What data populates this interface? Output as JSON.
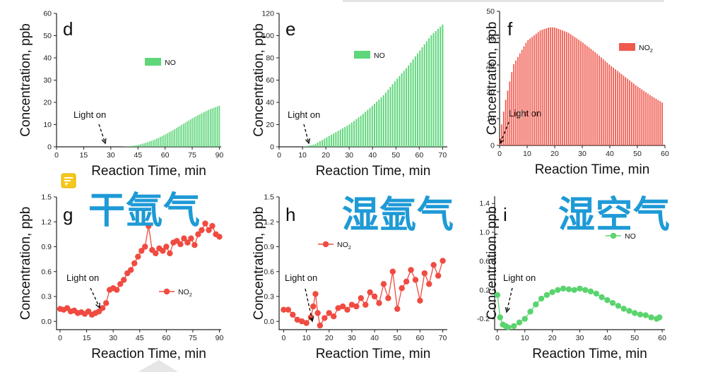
{
  "chart_data": [
    {
      "id": "d",
      "panel_label": "d",
      "type": "bar",
      "ylabel": "Concentration, ppb",
      "xlabel": "Reaction Time, min",
      "xlim": [
        0,
        91
      ],
      "ylim": [
        0,
        60
      ],
      "xticks": [
        0,
        15,
        30,
        45,
        60,
        75,
        90
      ],
      "yticks": [
        0,
        10,
        20,
        30,
        40,
        50,
        60
      ],
      "legend": "NO",
      "legend_sub": "",
      "color": "#5ed67a",
      "annotation": "Light on",
      "series": [
        {
          "name": "NO",
          "x": [
            0,
            5,
            10,
            15,
            20,
            25,
            30,
            35,
            40,
            45,
            50,
            55,
            60,
            65,
            70,
            75,
            80,
            85,
            90
          ],
          "values": [
            0,
            0,
            0,
            0,
            0,
            0,
            0,
            0,
            0.2,
            0.8,
            2,
            3.5,
            5.5,
            7.8,
            10.3,
            12.8,
            15,
            17,
            18.5
          ]
        }
      ]
    },
    {
      "id": "e",
      "panel_label": "e",
      "type": "bar",
      "ylabel": "Concentration, ppb",
      "xlabel": "Reaction Time, min",
      "xlim": [
        0,
        72
      ],
      "ylim": [
        0,
        120
      ],
      "xticks": [
        0,
        10,
        20,
        30,
        40,
        50,
        60,
        70
      ],
      "yticks": [
        0,
        20,
        40,
        60,
        80,
        100,
        120
      ],
      "legend": "NO",
      "legend_sub": "",
      "color": "#5ed67a",
      "annotation": "Light on",
      "series": [
        {
          "name": "NO",
          "x": [
            0,
            5,
            10,
            15,
            20,
            25,
            30,
            35,
            40,
            45,
            50,
            55,
            60,
            65,
            70
          ],
          "values": [
            0,
            0,
            0,
            2,
            8,
            14,
            20,
            28,
            37,
            47,
            60,
            72,
            86,
            100,
            110
          ]
        }
      ]
    },
    {
      "id": "f",
      "panel_label": "f",
      "type": "bar",
      "ylabel": "Concentration, ppb",
      "xlabel": "Reaction Time, min",
      "xlim": [
        0,
        60
      ],
      "ylim": [
        0,
        50
      ],
      "xticks": [
        0,
        10,
        20,
        30,
        40,
        50,
        60
      ],
      "yticks": [
        0,
        10,
        20,
        30,
        40,
        50
      ],
      "legend": "NO",
      "legend_sub": "2",
      "color": "#f05a4e",
      "annotation": "Light on",
      "series": [
        {
          "name": "NO2",
          "x": [
            0,
            2,
            5,
            10,
            15,
            18,
            20,
            25,
            30,
            35,
            40,
            45,
            50,
            55,
            59
          ],
          "values": [
            3,
            16,
            30,
            39,
            43,
            44,
            44,
            42,
            38.5,
            34.5,
            30,
            26,
            22,
            18.5,
            16
          ]
        }
      ]
    },
    {
      "id": "g",
      "panel_label": "g",
      "type": "line",
      "ylabel": "Concentration, ppb",
      "xlabel": "Reaction Time, min",
      "xlim": [
        -2,
        91
      ],
      "ylim": [
        -0.1,
        1.5
      ],
      "xticks": [
        0,
        15,
        30,
        45,
        60,
        75,
        90
      ],
      "yticks": [
        0.0,
        0.3,
        0.6,
        0.9,
        1.2,
        1.5
      ],
      "ytick_labels": [
        "0.0",
        "0.3",
        "0.6",
        "0.9",
        "1.2",
        "1.5"
      ],
      "legend": "NO",
      "legend_sub": "2",
      "color": "#f04b41",
      "annotation": "Light on",
      "series": [
        {
          "name": "NO2",
          "x": [
            0,
            2,
            4,
            6,
            8,
            10,
            12,
            14,
            16,
            18,
            20,
            22,
            24,
            26,
            28,
            30,
            32,
            34,
            36,
            38,
            40,
            42,
            44,
            46,
            48,
            50,
            52,
            54,
            56,
            58,
            60,
            62,
            64,
            66,
            68,
            70,
            72,
            74,
            76,
            78,
            80,
            82,
            84,
            86,
            88,
            90
          ],
          "values": [
            0.15,
            0.14,
            0.16,
            0.12,
            0.13,
            0.1,
            0.11,
            0.09,
            0.12,
            0.08,
            0.1,
            0.12,
            0.16,
            0.22,
            0.38,
            0.4,
            0.38,
            0.45,
            0.5,
            0.58,
            0.62,
            0.7,
            0.78,
            0.85,
            0.9,
            1.15,
            0.86,
            0.82,
            0.88,
            0.85,
            0.9,
            0.82,
            0.95,
            0.97,
            0.93,
            1.0,
            0.95,
            1.0,
            0.92,
            1.05,
            1.1,
            1.18,
            1.1,
            1.15,
            1.05,
            1.02
          ]
        }
      ]
    },
    {
      "id": "h",
      "panel_label": "h",
      "type": "line",
      "ylabel": "Concentration, ppb",
      "xlabel": "Reaction Time, min",
      "xlim": [
        -2,
        72
      ],
      "ylim": [
        -0.1,
        1.5
      ],
      "xticks": [
        0,
        10,
        20,
        30,
        40,
        50,
        60,
        70
      ],
      "yticks": [
        0.0,
        0.3,
        0.6,
        0.9,
        1.2,
        1.5
      ],
      "ytick_labels": [
        "0.0",
        "0.3",
        "0.6",
        "0.9",
        "1.2",
        "1.5"
      ],
      "legend": "NO",
      "legend_sub": "2",
      "color": "#f04b41",
      "annotation": "Light on",
      "series": [
        {
          "name": "NO2",
          "x": [
            0,
            2,
            4,
            6,
            8,
            10,
            12,
            13,
            14,
            15,
            16,
            18,
            20,
            22,
            24,
            26,
            28,
            30,
            32,
            34,
            36,
            38,
            40,
            42,
            44,
            46,
            48,
            50,
            52,
            54,
            56,
            58,
            60,
            62,
            64,
            66,
            68,
            70
          ],
          "values": [
            0.14,
            0.14,
            0.08,
            0.02,
            0.0,
            -0.02,
            0.05,
            0.18,
            0.33,
            0.1,
            -0.05,
            0.04,
            0.1,
            0.06,
            0.16,
            0.18,
            0.14,
            0.2,
            0.18,
            0.28,
            0.2,
            0.35,
            0.3,
            0.22,
            0.45,
            0.28,
            0.6,
            0.15,
            0.4,
            0.48,
            0.62,
            0.5,
            0.25,
            0.58,
            0.45,
            0.68,
            0.55,
            0.73
          ]
        }
      ]
    },
    {
      "id": "i",
      "panel_label": "i",
      "type": "line",
      "ylabel": "Concentration, ppb",
      "xlabel": "Reaction Time, min",
      "xlim": [
        -1,
        61
      ],
      "ylim": [
        -0.35,
        1.5
      ],
      "xticks": [
        0,
        10,
        20,
        30,
        40,
        50,
        60
      ],
      "yticks": [
        -0.2,
        0.2,
        0.6,
        1.0,
        1.4
      ],
      "ytick_labels": [
        "-0.2",
        "0.2",
        "0.6",
        "1.0",
        "1.4"
      ],
      "legend": "NO",
      "legend_sub": "",
      "color": "#5ad46e",
      "annotation": "Light on",
      "series": [
        {
          "name": "NO",
          "x": [
            0,
            1,
            2,
            3,
            4,
            6,
            8,
            10,
            12,
            14,
            16,
            18,
            20,
            22,
            24,
            26,
            28,
            30,
            32,
            34,
            36,
            38,
            40,
            42,
            44,
            46,
            48,
            50,
            52,
            54,
            56,
            58,
            59
          ],
          "values": [
            0.13,
            -0.18,
            -0.28,
            -0.3,
            -0.32,
            -0.3,
            -0.25,
            -0.2,
            -0.1,
            0.0,
            0.08,
            0.13,
            0.17,
            0.2,
            0.22,
            0.21,
            0.2,
            0.22,
            0.2,
            0.18,
            0.15,
            0.1,
            0.06,
            0.02,
            -0.02,
            -0.06,
            -0.09,
            -0.12,
            -0.14,
            -0.15,
            -0.18,
            -0.2,
            -0.18
          ]
        }
      ]
    }
  ],
  "overlay_labels": {
    "dry_argon": "干氩气",
    "wet_argon": "湿氩气",
    "wet_air": "湿空气"
  },
  "note_icon": "comment-icon",
  "colors": {
    "overlay_text": "#1e9ad6",
    "note_icon_bg": "#f6c81a"
  }
}
